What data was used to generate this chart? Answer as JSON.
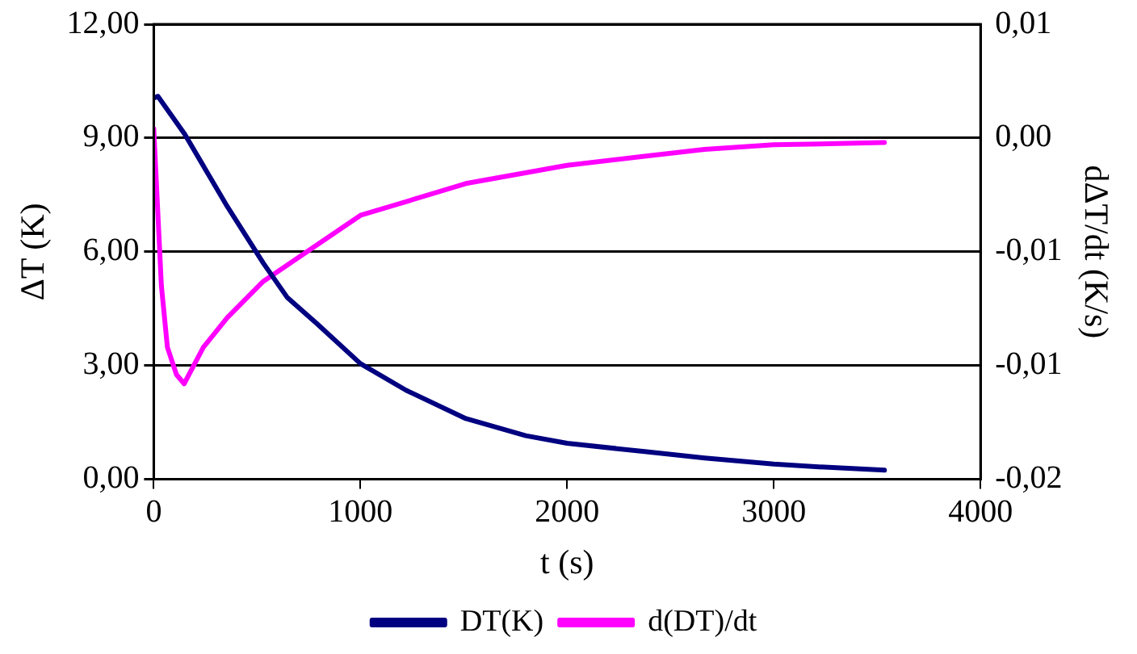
{
  "chart_data": {
    "type": "line",
    "xlabel": "t (s)",
    "ylabel": "ΔT (K)",
    "y2label": "dΔT/dt (K/s)",
    "xlim": [
      0,
      4000
    ],
    "xticks": [
      0,
      1000,
      2000,
      3000,
      4000
    ],
    "ylim": [
      0,
      12
    ],
    "yticks": [
      {
        "value": 0,
        "label": "0,00"
      },
      {
        "value": 3,
        "label": "3,00"
      },
      {
        "value": 6,
        "label": "6,00"
      },
      {
        "value": 9,
        "label": "9,00"
      },
      {
        "value": 12,
        "label": "12,00"
      }
    ],
    "y2lim": [
      -0.015,
      0.005
    ],
    "y2ticks": [
      {
        "value": -0.015,
        "label": "-0,02"
      },
      {
        "value": -0.01,
        "label": "-0,01"
      },
      {
        "value": -0.005,
        "label": "-0,01"
      },
      {
        "value": 0,
        "label": "0,00"
      },
      {
        "value": 0.005,
        "label": "0,01"
      }
    ],
    "grid": "y",
    "legend": "bottom",
    "marker": "none",
    "line_style": "solid",
    "series": [
      {
        "name": "DT(K)",
        "color": "#000080",
        "x": [
          0,
          20,
          150,
          355,
          530,
          645,
          790,
          1000,
          1220,
          1510,
          1800,
          2000,
          2375,
          2665,
          3000,
          3245,
          3535
        ],
        "values": [
          10.05,
          10.1,
          9.1,
          7.2,
          5.7,
          4.8,
          4.1,
          3.05,
          2.35,
          1.6,
          1.15,
          0.95,
          0.73,
          0.56,
          0.4,
          0.32,
          0.24
        ]
      },
      {
        "name": "d(DT)/dt",
        "color": "#ff00ff",
        "axis": "y2",
        "x": [
          0,
          37,
          66,
          110,
          147,
          240,
          355,
          530,
          790,
          1000,
          1220,
          1510,
          2000,
          2375,
          2665,
          3000,
          3535
        ],
        "values": [
          0.0004,
          -0.0065,
          -0.0092,
          -0.0104,
          -0.0108,
          -0.0092,
          -0.0079,
          -0.0063,
          -0.0047,
          -0.0034,
          -0.0028,
          -0.002,
          -0.0012,
          -0.0008,
          -0.0005,
          -0.0003,
          -0.0002
        ]
      }
    ]
  }
}
